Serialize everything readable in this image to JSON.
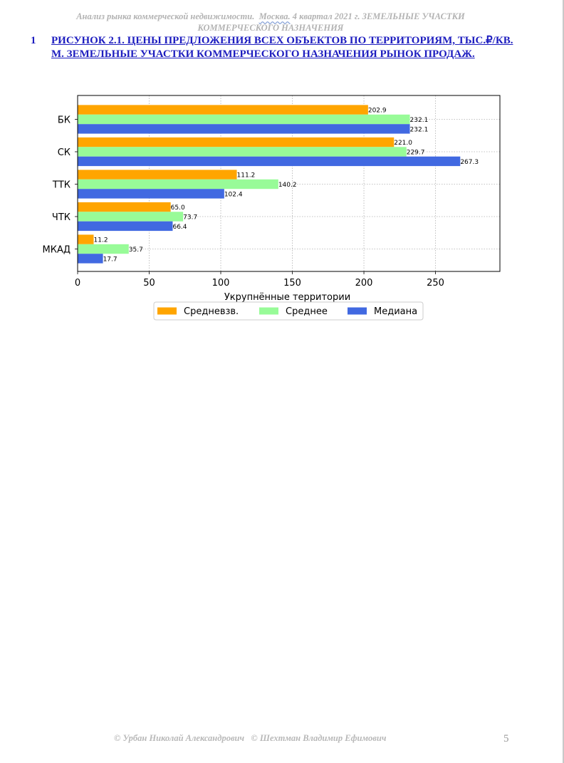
{
  "header": {
    "line1_part1": "Анализ рынка коммерческой недвижимости.",
    "line1_city": "Москва.",
    "line1_part2": " 4 квартал 2021 г.   ЗЕМЕЛЬНЫЕ УЧАСТКИ",
    "line2": "КОММЕРЧЕСКОГО НАЗНАЧЕНИЯ"
  },
  "figure_heading": {
    "number": "1",
    "text": "Рисунок 2.1. Цены предложения всех объектов по территориям, тыс.₽/кв. м. Земельные участки коммерческого назначения рынок продаж."
  },
  "chart_data": {
    "type": "bar",
    "orientation": "horizontal",
    "categories": [
      "БК",
      "СК",
      "ТТК",
      "ЧТК",
      "МКАД"
    ],
    "series": [
      {
        "name": "Средневзв.",
        "color": "#FFA500",
        "values": [
          202.9,
          221.0,
          111.2,
          65.0,
          11.2
        ],
        "labels": [
          "202.9",
          "221.0",
          "111.2",
          "65.0",
          "11.2"
        ]
      },
      {
        "name": "Среднее",
        "color": "#98FB98",
        "values": [
          232.1,
          229.7,
          140.2,
          73.7,
          35.7
        ],
        "labels": [
          "232.1",
          "229.7",
          "140.2",
          "73.7",
          "35.7"
        ]
      },
      {
        "name": "Медиана",
        "color": "#4169E1",
        "values": [
          232.1,
          267.3,
          102.4,
          66.4,
          17.7
        ],
        "labels": [
          "232.1",
          "267.3",
          "102.4",
          "66.4",
          "17.7"
        ]
      }
    ],
    "xlabel": "Укрупнённые территории",
    "ylabel": "",
    "xlim": [
      0,
      295
    ],
    "xticks": [
      "0",
      "50",
      "100",
      "150",
      "200",
      "250"
    ],
    "grid": true,
    "legend_position": "bottom-center"
  },
  "footer": {
    "authors": "© Урбан Николай Александрович   © Шехтман Владимир Ефимович",
    "page_number": "5"
  }
}
